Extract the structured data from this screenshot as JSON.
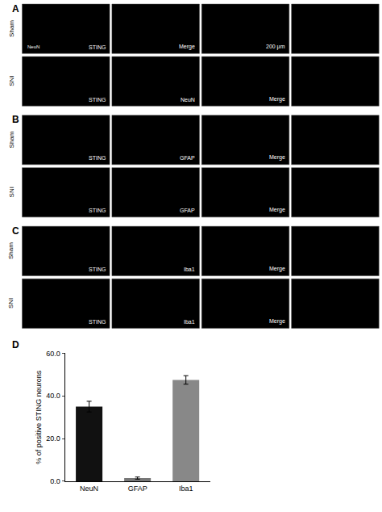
{
  "chart_data": {
    "type": "bar",
    "categories": [
      "NeuN",
      "GFAP",
      "Iba1"
    ],
    "values": [
      35.0,
      1.5,
      47.5
    ],
    "errors": [
      2.5,
      0.5,
      2.0
    ],
    "colors": [
      "#111111",
      "#777777",
      "#888888"
    ],
    "ylabel": "% of positive STING neurons",
    "ylim": [
      0,
      60
    ],
    "yticks": [
      {
        "value": 0,
        "label": "0.0"
      },
      {
        "value": 20,
        "label": "20.0"
      },
      {
        "value": 40,
        "label": "40.0"
      },
      {
        "value": 60,
        "label": "60.0"
      }
    ],
    "grid": false,
    "annotations": [
      "A",
      "Sham",
      "STING",
      "NeuN",
      "Merge",
      "200 μm",
      "SNI",
      "STING",
      "NeuN",
      "Merge",
      "B",
      "Sham",
      "STING",
      "GFAP",
      "Merge",
      "SNI",
      "STING",
      "GFAP",
      "Merge",
      "C",
      "Sham",
      "STING",
      "Iba1",
      "Merge",
      "SNI",
      "STING",
      "Iba1",
      "Merge",
      "D"
    ]
  }
}
